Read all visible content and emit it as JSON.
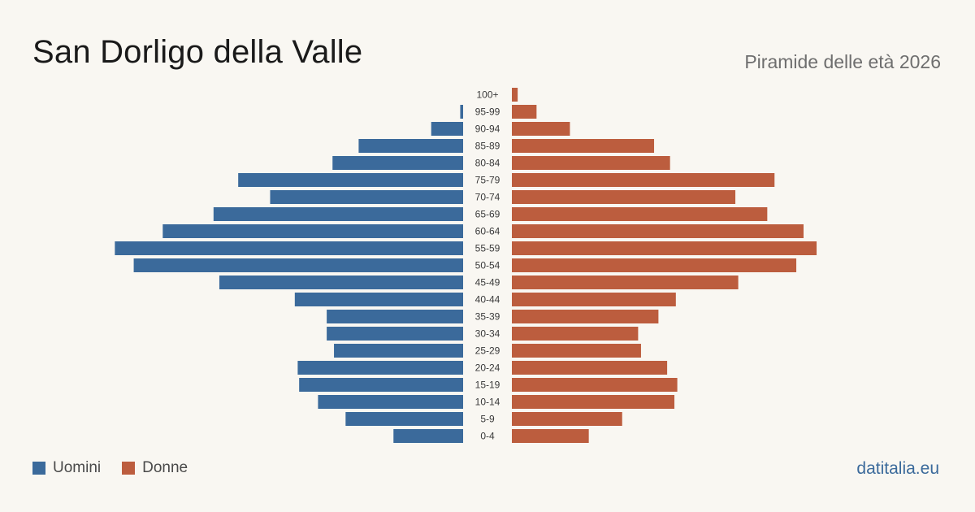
{
  "title": "San Dorligo della Valle",
  "subtitle": "Piramide delle età 2026",
  "site": "datitalia.eu",
  "colors": {
    "men": "#3b6a9b",
    "women": "#bc5d3e",
    "background": "#f9f7f2"
  },
  "chart_data": {
    "type": "bar",
    "orientation": "horizontal-pyramid",
    "categories": [
      "100+",
      "95-99",
      "90-94",
      "85-89",
      "80-84",
      "75-79",
      "70-74",
      "65-69",
      "60-64",
      "55-59",
      "50-54",
      "45-49",
      "40-44",
      "35-39",
      "30-34",
      "25-29",
      "20-24",
      "15-19",
      "10-14",
      "5-9",
      "0-4"
    ],
    "series": [
      {
        "name": "Uomini",
        "values": [
          0,
          2,
          22,
          72,
          90,
          155,
          133,
          172,
          207,
          240,
          227,
          168,
          116,
          94,
          94,
          89,
          114,
          113,
          100,
          81,
          48
        ]
      },
      {
        "name": "Donne",
        "values": [
          4,
          17,
          40,
          98,
          109,
          181,
          154,
          176,
          201,
          210,
          196,
          156,
          113,
          101,
          87,
          89,
          107,
          114,
          112,
          76,
          53
        ]
      }
    ],
    "legend": {
      "position": "bottom-left",
      "items": [
        "Uomini",
        "Donne"
      ]
    },
    "grid": false
  }
}
